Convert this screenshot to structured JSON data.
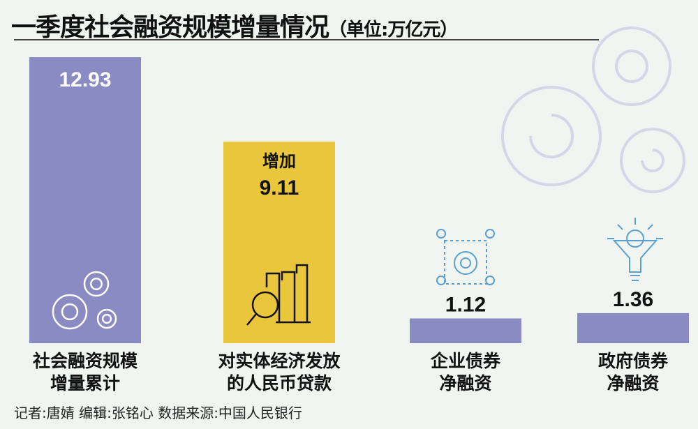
{
  "title": "一季度社会融资规模增量情况",
  "unit": "（单位:万亿元）",
  "chart_data": {
    "type": "bar",
    "title": "一季度社会融资规模增量情况",
    "ylabel": "万亿元",
    "ylim": [
      0,
      12.93
    ],
    "grid": false,
    "categories": [
      "社会融资规模增量累计",
      "对实体经济发放的人民币贷款",
      "企业债券净融资",
      "政府债券净融资"
    ],
    "category_lines": [
      [
        "社会融资规模",
        "增量累计"
      ],
      [
        "对实体经济发放",
        "的人民币贷款"
      ],
      [
        "企业债券",
        "净融资"
      ],
      [
        "政府债券",
        "净融资"
      ]
    ],
    "values": [
      12.93,
      9.11,
      1.12,
      1.36
    ],
    "value_labels": [
      "12.93",
      "9.11",
      "1.12",
      "1.36"
    ],
    "annotations": [
      "增加"
    ],
    "colors": [
      "#8b8bc3",
      "#e9c63c",
      "#8b8bc3",
      "#8b8bc3"
    ]
  },
  "footer": "记者:唐婧  编辑:张铭心  数据来源:中国人民银行"
}
